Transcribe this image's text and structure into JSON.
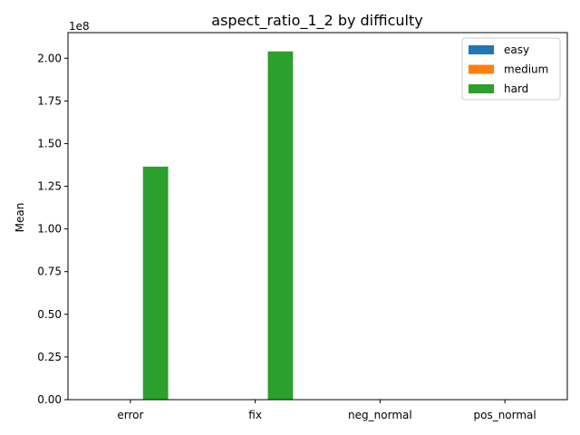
{
  "chart_data": {
    "type": "bar",
    "title": "aspect_ratio_1_2 by difficulty",
    "xlabel": "",
    "ylabel": "Mean",
    "y_offset_label": "1e8",
    "categories": [
      "error",
      "fix",
      "neg_normal",
      "pos_normal"
    ],
    "series": [
      {
        "name": "easy",
        "color": "#1f77b4",
        "values": [
          0,
          0,
          0,
          0
        ]
      },
      {
        "name": "medium",
        "color": "#ff7f0e",
        "values": [
          0,
          0,
          0,
          0
        ]
      },
      {
        "name": "hard",
        "color": "#2ca02c",
        "values": [
          136500000,
          204000000,
          0,
          0
        ]
      }
    ],
    "ylim": [
      0,
      215000000
    ],
    "yticks": [
      0,
      25000000,
      50000000,
      75000000,
      100000000,
      125000000,
      150000000,
      175000000,
      200000000
    ],
    "ytick_labels": [
      "0.00",
      "0.25",
      "0.50",
      "0.75",
      "1.00",
      "1.25",
      "1.50",
      "1.75",
      "2.00"
    ],
    "grid": false,
    "legend_position": "top-right"
  }
}
